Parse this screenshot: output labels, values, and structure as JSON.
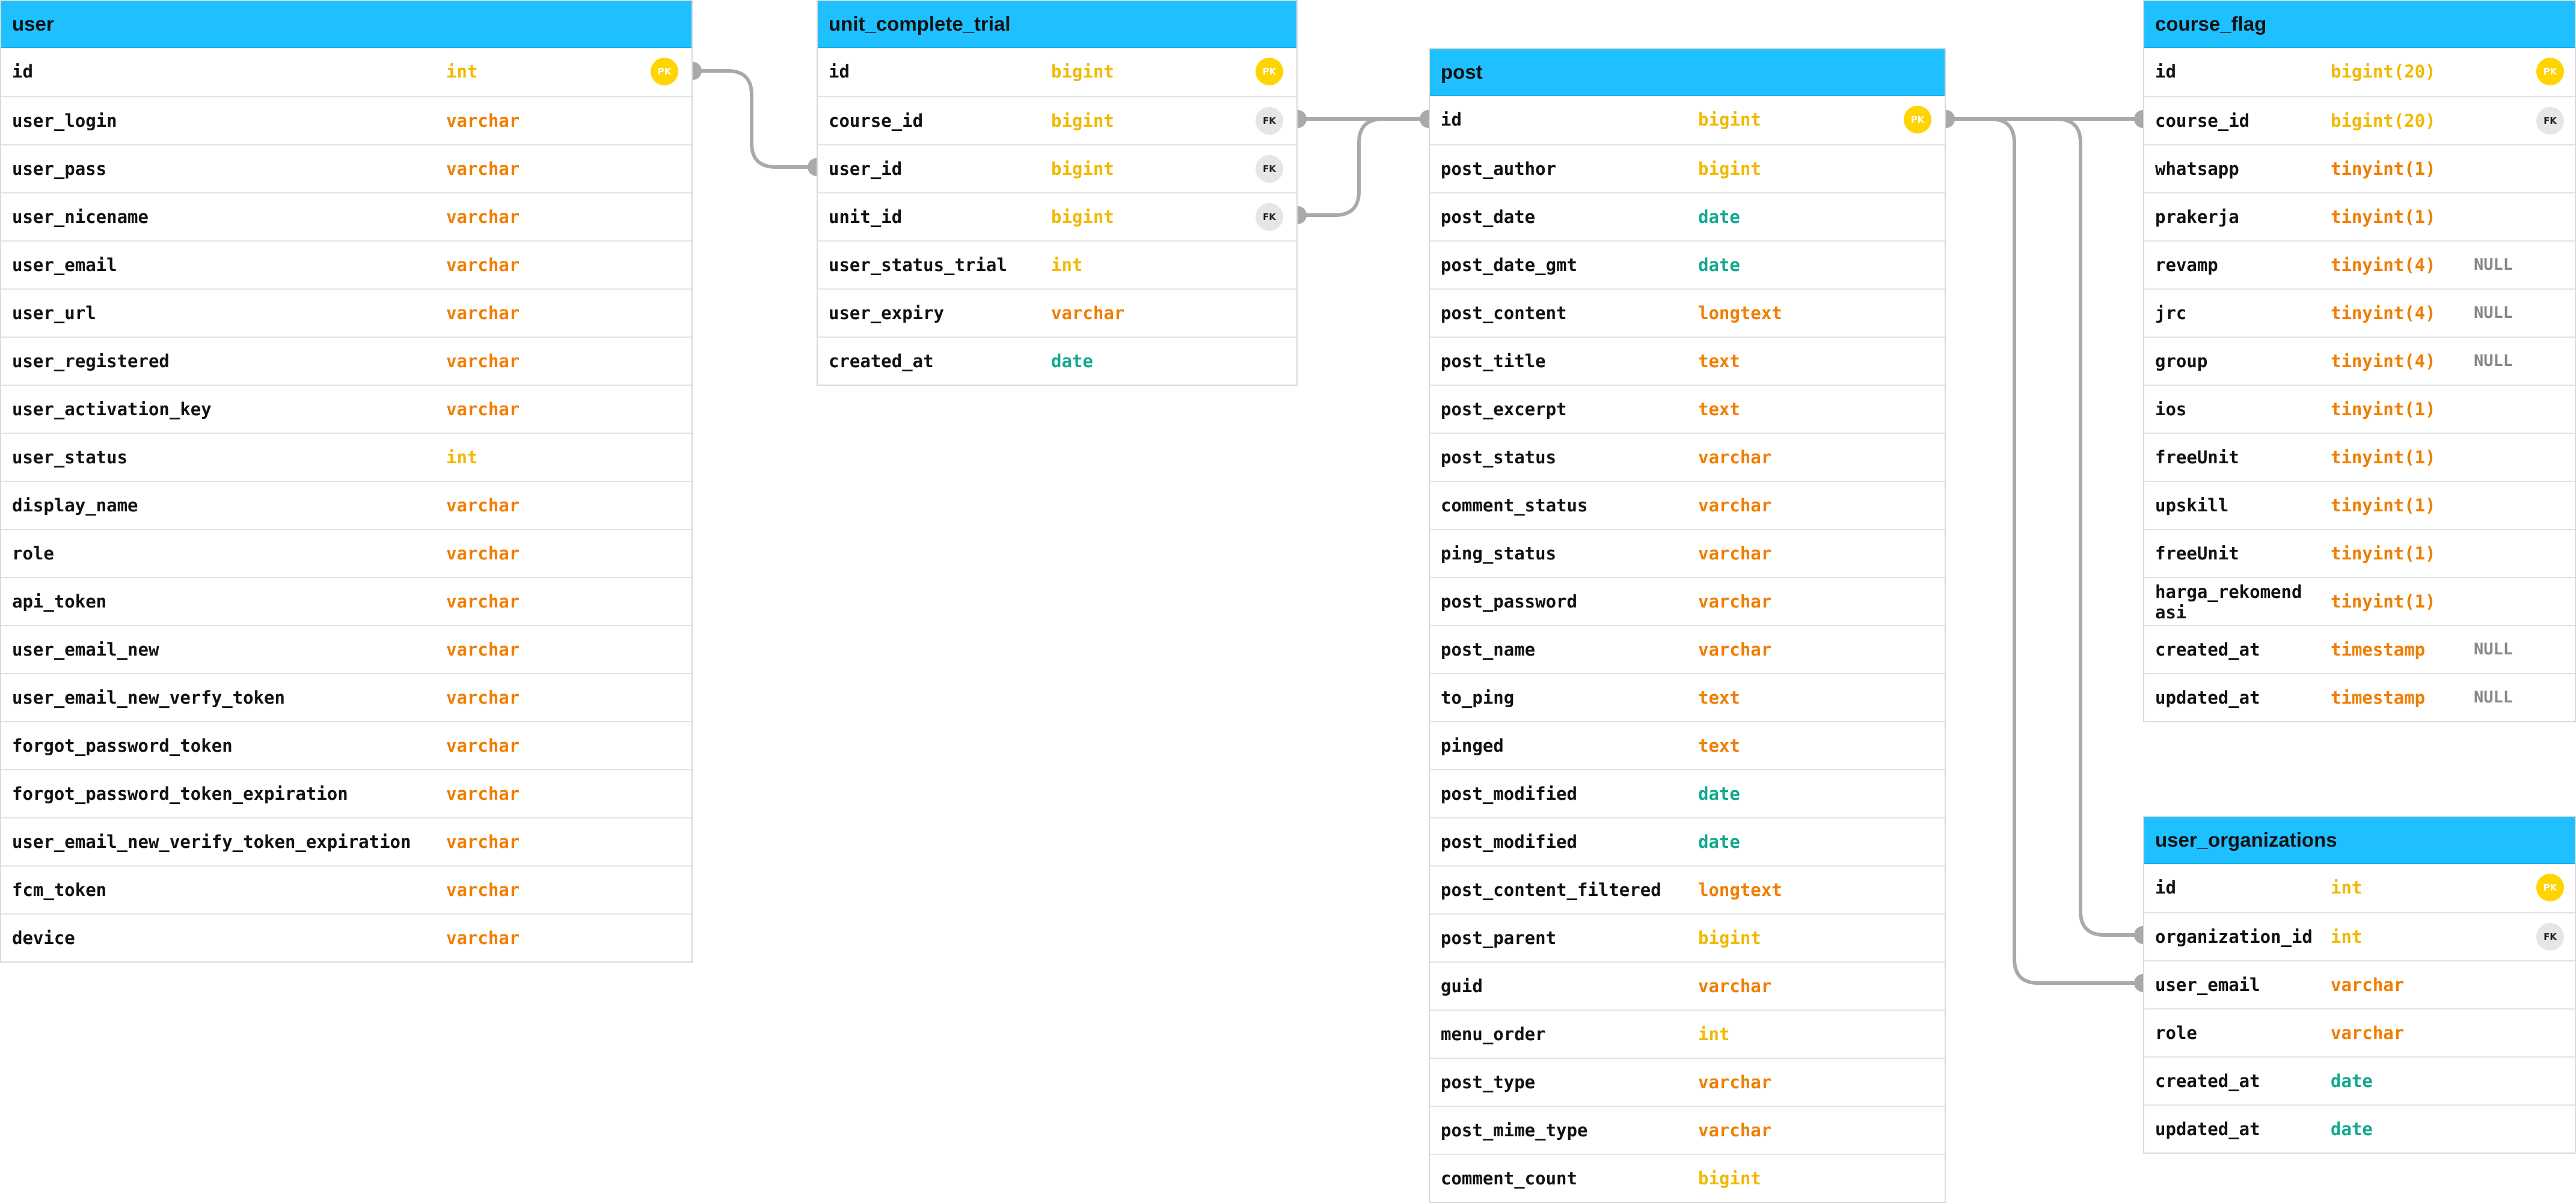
{
  "tables": [
    {
      "id": "user",
      "name": "user",
      "rows": [
        {
          "name": "id",
          "type": "int",
          "key": "PK"
        },
        {
          "name": "user_login",
          "type": "varchar"
        },
        {
          "name": "user_pass",
          "type": "varchar"
        },
        {
          "name": "user_nicename",
          "type": "varchar"
        },
        {
          "name": "user_email",
          "type": "varchar"
        },
        {
          "name": "user_url",
          "type": "varchar"
        },
        {
          "name": "user_registered",
          "type": "varchar"
        },
        {
          "name": "user_activation_key",
          "type": "varchar"
        },
        {
          "name": "user_status",
          "type": "int"
        },
        {
          "name": "display_name",
          "type": "varchar"
        },
        {
          "name": "role",
          "type": "varchar"
        },
        {
          "name": "api_token",
          "type": "varchar"
        },
        {
          "name": "user_email_new",
          "type": "varchar"
        },
        {
          "name": "user_email_new_verfy_token",
          "type": "varchar"
        },
        {
          "name": "forgot_password_token",
          "type": "varchar"
        },
        {
          "name": "forgot_password_token_expiration",
          "type": "varchar"
        },
        {
          "name": "user_email_new_verify_token_expiration",
          "type": "varchar"
        },
        {
          "name": "fcm_token",
          "type": "varchar"
        },
        {
          "name": "device",
          "type": "varchar"
        }
      ]
    },
    {
      "id": "unit_complete_trial",
      "name": "unit_complete_trial",
      "rows": [
        {
          "name": "id",
          "type": "bigint",
          "key": "PK"
        },
        {
          "name": "course_id",
          "type": "bigint",
          "key": "FK"
        },
        {
          "name": "user_id",
          "type": "bigint",
          "key": "FK"
        },
        {
          "name": "unit_id",
          "type": "bigint",
          "key": "FK"
        },
        {
          "name": "user_status_trial",
          "type": "int"
        },
        {
          "name": "user_expiry",
          "type": "varchar"
        },
        {
          "name": "created_at",
          "type": "date"
        }
      ]
    },
    {
      "id": "post",
      "name": "post",
      "rows": [
        {
          "name": "id",
          "type": "bigint",
          "key": "PK"
        },
        {
          "name": "post_author",
          "type": "bigint"
        },
        {
          "name": "post_date",
          "type": "date"
        },
        {
          "name": "post_date_gmt",
          "type": "date"
        },
        {
          "name": "post_content",
          "type": "longtext"
        },
        {
          "name": "post_title",
          "type": "text"
        },
        {
          "name": "post_excerpt",
          "type": "text"
        },
        {
          "name": "post_status",
          "type": "varchar"
        },
        {
          "name": "comment_status",
          "type": "varchar"
        },
        {
          "name": "ping_status",
          "type": "varchar"
        },
        {
          "name": "post_password",
          "type": "varchar"
        },
        {
          "name": "post_name",
          "type": "varchar"
        },
        {
          "name": "to_ping",
          "type": "text"
        },
        {
          "name": "pinged",
          "type": "text"
        },
        {
          "name": "post_modified",
          "type": "date"
        },
        {
          "name": "post_modified",
          "type": "date"
        },
        {
          "name": "post_content_filtered",
          "type": "longtext"
        },
        {
          "name": "post_parent",
          "type": "bigint"
        },
        {
          "name": "guid",
          "type": "varchar"
        },
        {
          "name": "menu_order",
          "type": "int"
        },
        {
          "name": "post_type",
          "type": "varchar"
        },
        {
          "name": "post_mime_type",
          "type": "varchar"
        },
        {
          "name": "comment_count",
          "type": "bigint"
        }
      ]
    },
    {
      "id": "course_flag",
      "name": "course_flag",
      "rows": [
        {
          "name": "id",
          "type": "bigint(20)",
          "key": "PK"
        },
        {
          "name": "course_id",
          "type": "bigint(20)",
          "key": "FK"
        },
        {
          "name": "whatsapp",
          "type": "tinyint(1)"
        },
        {
          "name": "prakerja",
          "type": "tinyint(1)"
        },
        {
          "name": "revamp",
          "type": "tinyint(4)",
          "extra": "NULL"
        },
        {
          "name": "jrc",
          "type": "tinyint(4)",
          "extra": "NULL"
        },
        {
          "name": "group",
          "type": "tinyint(4)",
          "extra": "NULL"
        },
        {
          "name": "ios",
          "type": "tinyint(1)"
        },
        {
          "name": "freeUnit",
          "type": "tinyint(1)"
        },
        {
          "name": "upskill",
          "type": "tinyint(1)"
        },
        {
          "name": "freeUnit",
          "type": "tinyint(1)"
        },
        {
          "name": "harga_rekomendasi",
          "type": "tinyint(1)",
          "wrap": true
        },
        {
          "name": "created_at",
          "type": "timestamp",
          "extra": "NULL"
        },
        {
          "name": "updated_at",
          "type": "timestamp",
          "extra": "NULL"
        }
      ]
    },
    {
      "id": "user_organizations",
      "name": "user_organizations",
      "rows": [
        {
          "name": "id",
          "type": "int",
          "key": "PK"
        },
        {
          "name": "organization_id",
          "type": "int",
          "key": "FK"
        },
        {
          "name": "user_email",
          "type": "varchar"
        },
        {
          "name": "role",
          "type": "varchar"
        },
        {
          "name": "created_at",
          "type": "date"
        },
        {
          "name": "updated_at",
          "type": "date"
        }
      ]
    }
  ],
  "relations": [
    {
      "from": "user.id",
      "to": "unit_complete_trial.user_id"
    },
    {
      "from": "unit_complete_trial.course_id",
      "to": "post.id"
    },
    {
      "from": "unit_complete_trial.unit_id",
      "to": "post.id"
    },
    {
      "from": "post.id",
      "to": "course_flag.course_id"
    },
    {
      "from": "post.id",
      "to": "user_organizations.organization_id"
    },
    {
      "from": "post.id",
      "to": "user_organizations.user_email"
    }
  ],
  "colors": {
    "header": "#1ec0ff",
    "int": "#f2b900",
    "bigint": "#f2b900",
    "varchar": "#f07e00",
    "date": "#12a890",
    "pk_badge": "#ffd400",
    "fk_badge": "#e6e6e6",
    "connector": "#a9a9a9"
  }
}
